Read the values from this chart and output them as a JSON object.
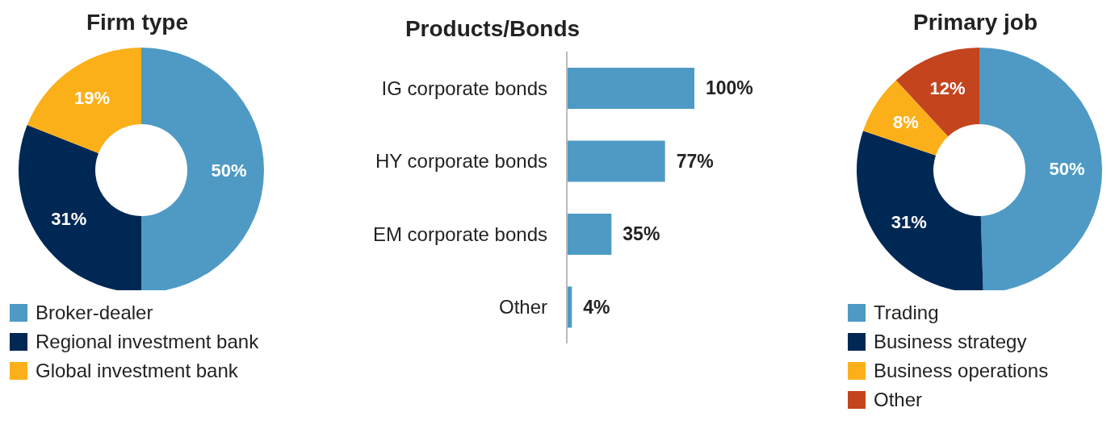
{
  "chart_data": [
    {
      "type": "donut",
      "title": "Firm type",
      "categories": [
        "Broker-dealer",
        "Regional investment bank",
        "Global investment bank"
      ],
      "values": [
        50,
        31,
        19
      ],
      "value_labels": [
        "50%",
        "31%",
        "19%"
      ],
      "colors": [
        "#4e9ac5",
        "#002855",
        "#fbb01a"
      ],
      "legend": "bottom"
    },
    {
      "type": "bar",
      "orientation": "horizontal",
      "title": "Products/Bonds",
      "categories": [
        "IG corporate bonds",
        "HY corporate bonds",
        "EM corporate bonds",
        "Other"
      ],
      "values": [
        100,
        77,
        35,
        4
      ],
      "value_labels": [
        "100%",
        "77%",
        "35%",
        "4%"
      ],
      "color": "#4e9ac5"
    },
    {
      "type": "donut",
      "title": "Primary job",
      "categories": [
        "Trading",
        "Business strategy",
        "Business operations",
        "Other"
      ],
      "values": [
        50,
        31,
        8,
        12
      ],
      "value_labels": [
        "50%",
        "31%",
        "8%",
        "12%"
      ],
      "colors": [
        "#4e9ac5",
        "#002855",
        "#fbb01a",
        "#c4441d"
      ],
      "legend": "bottom"
    }
  ]
}
